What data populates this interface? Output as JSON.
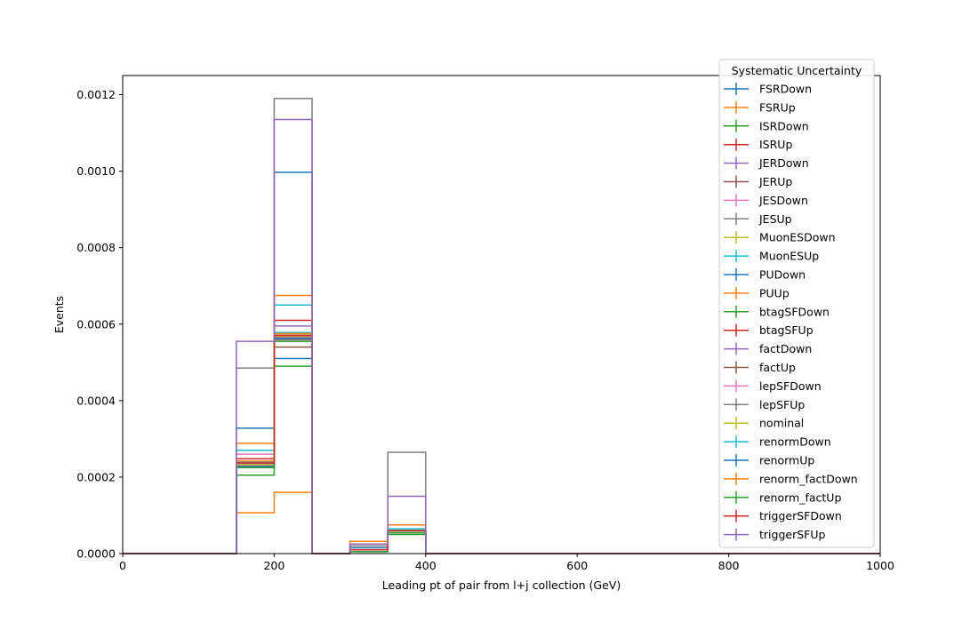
{
  "chart_data": {
    "type": "histogram-step",
    "xlabel": "Leading pt of pair from l+j collection (GeV)",
    "ylabel": "Events",
    "xlim": [
      0,
      1000
    ],
    "ylim": [
      0,
      0.00125
    ],
    "xticks": [
      0,
      200,
      400,
      600,
      800,
      1000
    ],
    "xtick_labels": [
      "0",
      "200",
      "400",
      "600",
      "800",
      "1000"
    ],
    "yticks": [
      0,
      0.0002,
      0.0004,
      0.0006,
      0.0008,
      0.001,
      0.0012
    ],
    "ytick_labels": [
      "0.0000",
      "0.0002",
      "0.0004",
      "0.0006",
      "0.0008",
      "0.0010",
      "0.0012"
    ],
    "grid": false,
    "bin_edges": [
      0,
      150,
      200,
      250,
      300,
      350,
      400,
      1000
    ],
    "legend": {
      "title": "Systematic Uncertainty",
      "placement": "top-right"
    },
    "series": [
      {
        "name": "FSRDown",
        "color": "#1f77b4",
        "values": [
          0,
          0.000225,
          0.00051,
          0,
          5e-06,
          5.5e-05,
          0
        ]
      },
      {
        "name": "FSRUp",
        "color": "#ff7f0e",
        "values": [
          0,
          0.000107,
          0.00016,
          0,
          1e-05,
          6e-05,
          0
        ]
      },
      {
        "name": "ISRDown",
        "color": "#2ca02c",
        "values": [
          0,
          0.000205,
          0.00049,
          0,
          5e-06,
          5e-05,
          0
        ]
      },
      {
        "name": "ISRUp",
        "color": "#d62728",
        "values": [
          0,
          0.000248,
          0.00061,
          0,
          1e-05,
          5.5e-05,
          0
        ]
      },
      {
        "name": "JERDown",
        "color": "#9467bd",
        "values": [
          0,
          0.00024,
          0.000595,
          0,
          1e-05,
          6e-05,
          0
        ]
      },
      {
        "name": "JERUp",
        "color": "#8c564b",
        "values": [
          0,
          0.000235,
          0.00054,
          0,
          1e-05,
          5.5e-05,
          0
        ]
      },
      {
        "name": "JESDown",
        "color": "#e377c2",
        "values": [
          0,
          0.00026,
          0.00056,
          0,
          1e-05,
          6e-05,
          0
        ]
      },
      {
        "name": "JESUp",
        "color": "#7f7f7f",
        "values": [
          0,
          0.000485,
          0.00119,
          0,
          2e-05,
          0.000265,
          0
        ]
      },
      {
        "name": "MuonESDown",
        "color": "#bcbd22",
        "values": [
          0,
          0.00023,
          0.00057,
          0,
          1e-05,
          6e-05,
          0
        ]
      },
      {
        "name": "MuonESUp",
        "color": "#17becf",
        "values": [
          0,
          0.00027,
          0.00065,
          0,
          1e-05,
          6.5e-05,
          0
        ]
      },
      {
        "name": "PUDown",
        "color": "#1f77b4",
        "values": [
          0,
          0.000328,
          0.000997,
          0,
          1.5e-05,
          6e-05,
          0
        ]
      },
      {
        "name": "PUUp",
        "color": "#ff7f0e",
        "values": [
          0,
          0.000288,
          0.000675,
          0,
          3.2e-05,
          7.5e-05,
          0
        ]
      },
      {
        "name": "btagSFDown",
        "color": "#2ca02c",
        "values": [
          0,
          0.000232,
          0.00057,
          0,
          1e-05,
          5.5e-05,
          0
        ]
      },
      {
        "name": "btagSFUp",
        "color": "#d62728",
        "values": [
          0,
          0.000238,
          0.000575,
          0,
          1e-05,
          6e-05,
          0
        ]
      },
      {
        "name": "factDown",
        "color": "#9467bd",
        "values": [
          0,
          0.000235,
          0.000565,
          0,
          1e-05,
          6e-05,
          0
        ]
      },
      {
        "name": "factUp",
        "color": "#8c564b",
        "values": [
          0,
          0.000232,
          0.00056,
          0,
          1e-05,
          6e-05,
          0
        ]
      },
      {
        "name": "lepSFDown",
        "color": "#e377c2",
        "values": [
          0,
          0.00023,
          0.000555,
          0,
          1e-05,
          6e-05,
          0
        ]
      },
      {
        "name": "lepSFUp",
        "color": "#7f7f7f",
        "values": [
          0,
          0.000238,
          0.000575,
          0,
          1e-05,
          6e-05,
          0
        ]
      },
      {
        "name": "nominal",
        "color": "#bcbd22",
        "values": [
          0,
          0.000233,
          0.000568,
          0,
          1e-05,
          6e-05,
          0
        ]
      },
      {
        "name": "renormDown",
        "color": "#17becf",
        "values": [
          0,
          0.00024,
          0.000578,
          0,
          1e-05,
          6e-05,
          0
        ]
      },
      {
        "name": "renormUp",
        "color": "#1f77b4",
        "values": [
          0,
          0.000228,
          0.000562,
          0,
          1e-05,
          6e-05,
          0
        ]
      },
      {
        "name": "renorm_factDown",
        "color": "#ff7f0e",
        "values": [
          0,
          0.000242,
          0.000575,
          0,
          1e-05,
          6e-05,
          0
        ]
      },
      {
        "name": "renorm_factUp",
        "color": "#2ca02c",
        "values": [
          0,
          0.000225,
          0.000555,
          0,
          1e-05,
          6e-05,
          0
        ]
      },
      {
        "name": "triggerSFDown",
        "color": "#d62728",
        "values": [
          0,
          0.000237,
          0.00057,
          0,
          1e-05,
          6e-05,
          0
        ]
      },
      {
        "name": "triggerSFUp",
        "color": "#9467bd",
        "values": [
          0,
          0.000555,
          0.001135,
          0,
          2.5e-05,
          0.00015,
          0
        ]
      }
    ]
  }
}
